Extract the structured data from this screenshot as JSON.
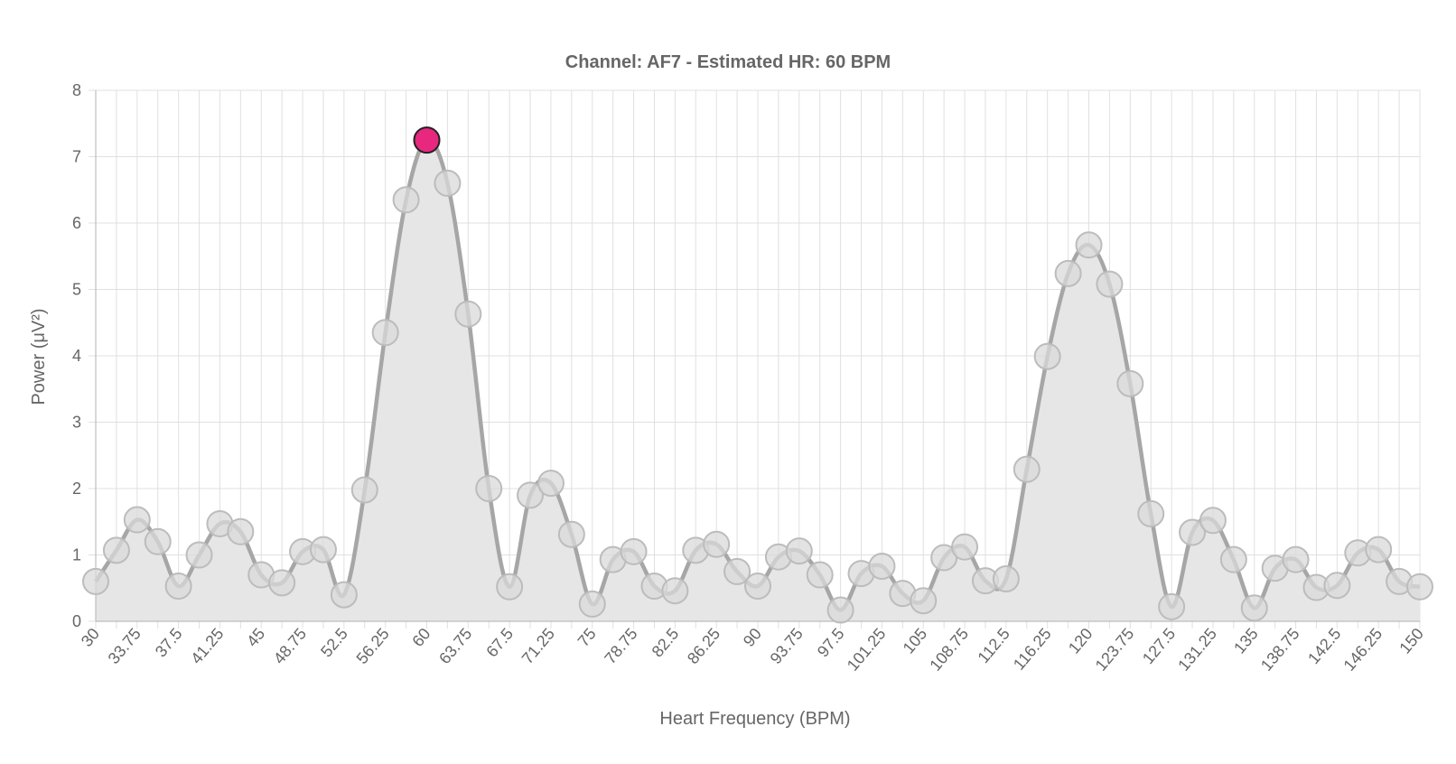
{
  "chart_data": {
    "type": "line",
    "title": "Channel: AF7 - Estimated HR: 60 BPM",
    "xlabel": "Heart Frequency (BPM)",
    "ylabel": "Power (μV²)",
    "xlim": [
      30,
      150
    ],
    "ylim": [
      0,
      8
    ],
    "y_ticks": [
      0,
      1,
      2,
      3,
      4,
      5,
      6,
      7,
      8
    ],
    "x_tick_labels": [
      "30",
      "33.75",
      "37.5",
      "41.25",
      "45",
      "48.75",
      "52.5",
      "56.25",
      "60",
      "63.75",
      "67.5",
      "71.25",
      "75",
      "78.75",
      "82.5",
      "86.25",
      "90",
      "93.75",
      "97.5",
      "101.25",
      "105",
      "108.75",
      "112.5",
      "116.25",
      "120",
      "123.75",
      "127.5",
      "131.25",
      "135",
      "138.75",
      "142.5",
      "146.25",
      "150"
    ],
    "grid": true,
    "legend": "none",
    "fill": true,
    "series": [
      {
        "x": [
          30,
          31.875,
          33.75,
          35.625,
          37.5,
          39.375,
          41.25,
          43.125,
          45,
          46.875,
          48.75,
          50.625,
          52.5,
          54.375,
          56.25,
          58.125,
          60,
          61.875,
          63.75,
          65.625,
          67.5,
          69.375,
          71.25,
          73.125,
          75,
          76.875,
          78.75,
          80.625,
          82.5,
          84.375,
          86.25,
          88.125,
          90,
          91.875,
          93.75,
          95.625,
          97.5,
          99.375,
          101.25,
          103.125,
          105,
          106.875,
          108.75,
          110.625,
          112.5,
          114.375,
          116.25,
          118.125,
          120,
          121.875,
          123.75,
          125.625,
          127.5,
          129.375,
          131.25,
          133.125,
          135,
          136.875,
          138.75,
          140.625,
          142.5,
          144.375,
          146.25,
          148.125,
          150
        ],
        "values": [
          0.6,
          1.07,
          1.53,
          1.2,
          0.53,
          1.0,
          1.47,
          1.35,
          0.7,
          0.58,
          1.05,
          1.08,
          0.4,
          1.98,
          4.35,
          6.35,
          7.25,
          6.6,
          4.63,
          2.0,
          0.52,
          1.9,
          2.08,
          1.31,
          0.26,
          0.93,
          1.05,
          0.53,
          0.46,
          1.07,
          1.16,
          0.75,
          0.53,
          0.97,
          1.06,
          0.7,
          0.17,
          0.72,
          0.83,
          0.42,
          0.31,
          0.96,
          1.12,
          0.61,
          0.64,
          2.29,
          3.99,
          5.24,
          5.67,
          5.08,
          3.58,
          1.62,
          0.22,
          1.34,
          1.52,
          0.93,
          0.2,
          0.8,
          0.93,
          0.51,
          0.54,
          1.03,
          1.08,
          0.6,
          0.52
        ]
      }
    ],
    "highlight": {
      "x": 60,
      "y": 7.25,
      "color": "#e8277f"
    },
    "colors": {
      "line": "#a6a6a6",
      "fill": "#e6e6e6",
      "point_fill": "#d9d9d9",
      "point_stroke": "#bcbcbc",
      "highlight_stroke": "#222222"
    }
  }
}
